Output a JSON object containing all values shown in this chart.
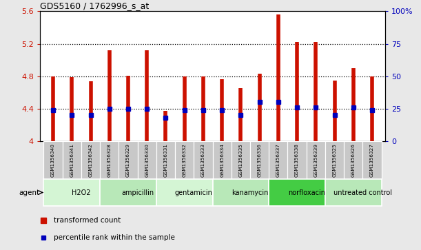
{
  "title": "GDS5160 / 1762996_s_at",
  "samples": [
    "GSM1356340",
    "GSM1356341",
    "GSM1356342",
    "GSM1356328",
    "GSM1356329",
    "GSM1356330",
    "GSM1356331",
    "GSM1356332",
    "GSM1356333",
    "GSM1356334",
    "GSM1356335",
    "GSM1356336",
    "GSM1356337",
    "GSM1356338",
    "GSM1356339",
    "GSM1356325",
    "GSM1356326",
    "GSM1356327"
  ],
  "transformed_counts": [
    4.8,
    4.79,
    4.74,
    5.12,
    4.81,
    5.12,
    4.37,
    4.8,
    4.8,
    4.76,
    4.65,
    4.83,
    5.56,
    5.22,
    5.22,
    4.75,
    4.9,
    4.8
  ],
  "percentile_ranks_pct": [
    24,
    20,
    20,
    25,
    25,
    25,
    18,
    24,
    24,
    24,
    20,
    30,
    30,
    26,
    26,
    20,
    26,
    24
  ],
  "agents": [
    {
      "label": "H2O2",
      "start": 0,
      "end": 3,
      "color": "#d4f5d4"
    },
    {
      "label": "ampicillin",
      "start": 3,
      "end": 6,
      "color": "#b8e8b8"
    },
    {
      "label": "gentamicin",
      "start": 6,
      "end": 9,
      "color": "#d4f5d4"
    },
    {
      "label": "kanamycin",
      "start": 9,
      "end": 12,
      "color": "#b8e8b8"
    },
    {
      "label": "norfloxacin",
      "start": 12,
      "end": 15,
      "color": "#44cc44"
    },
    {
      "label": "untreated control",
      "start": 15,
      "end": 18,
      "color": "#b8e8b8"
    }
  ],
  "ylim_left": [
    4.0,
    5.6
  ],
  "ylim_right": [
    0,
    100
  ],
  "yticks_left": [
    4.0,
    4.4,
    4.8,
    5.2,
    5.6
  ],
  "yticks_right": [
    0,
    25,
    50,
    75,
    100
  ],
  "ytick_labels_left": [
    "4",
    "4.4",
    "4.8",
    "5.2",
    "5.6"
  ],
  "ytick_labels_right": [
    "0",
    "25",
    "50",
    "75",
    "100%"
  ],
  "bar_color": "#cc1100",
  "dot_color": "#0000bb",
  "background_color": "#e8e8e8",
  "plot_bg_color": "#ffffff",
  "label_color_left": "#cc1100",
  "label_color_right": "#0000bb",
  "sample_box_color": "#c8c8c8",
  "sample_box_edge": "#ffffff"
}
